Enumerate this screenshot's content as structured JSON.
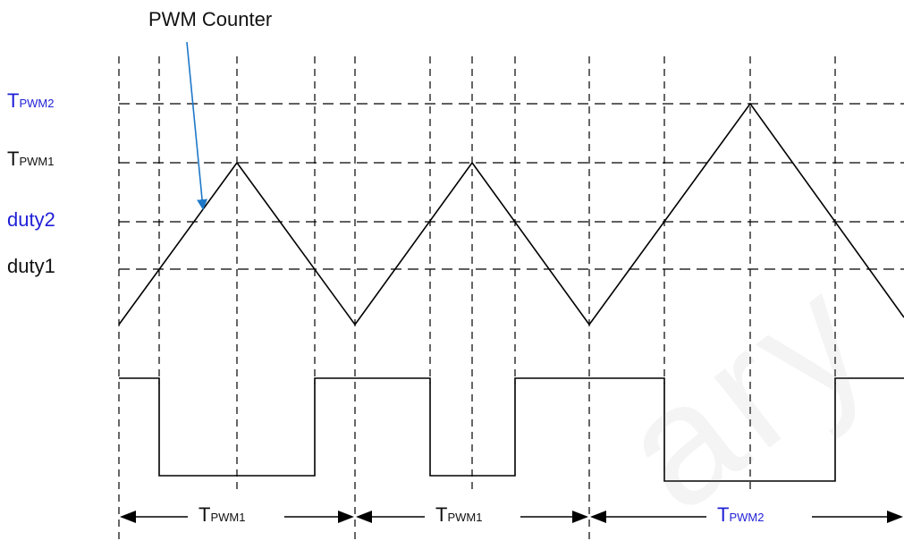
{
  "title": "PWM Counter",
  "levels": {
    "tpwm2": {
      "main": "T",
      "sub": "PWM2",
      "color": "#1f1fd6"
    },
    "tpwm1": {
      "main": "T",
      "sub": "PWM1",
      "color": "#111111"
    },
    "duty2": {
      "label": "duty2",
      "color": "#1f1fd6"
    },
    "duty1": {
      "label": "duty1",
      "color": "#111111"
    }
  },
  "periods": [
    {
      "main": "T",
      "sub": "PWM1",
      "color": "#111111"
    },
    {
      "main": "T",
      "sub": "PWM1",
      "color": "#111111"
    },
    {
      "main": "T",
      "sub": "PWM2",
      "color": "#1f1fd6"
    }
  ],
  "watermark": "ary",
  "colors": {
    "arrow": "#1e78c8",
    "blue_text": "#1f1fd6"
  }
}
